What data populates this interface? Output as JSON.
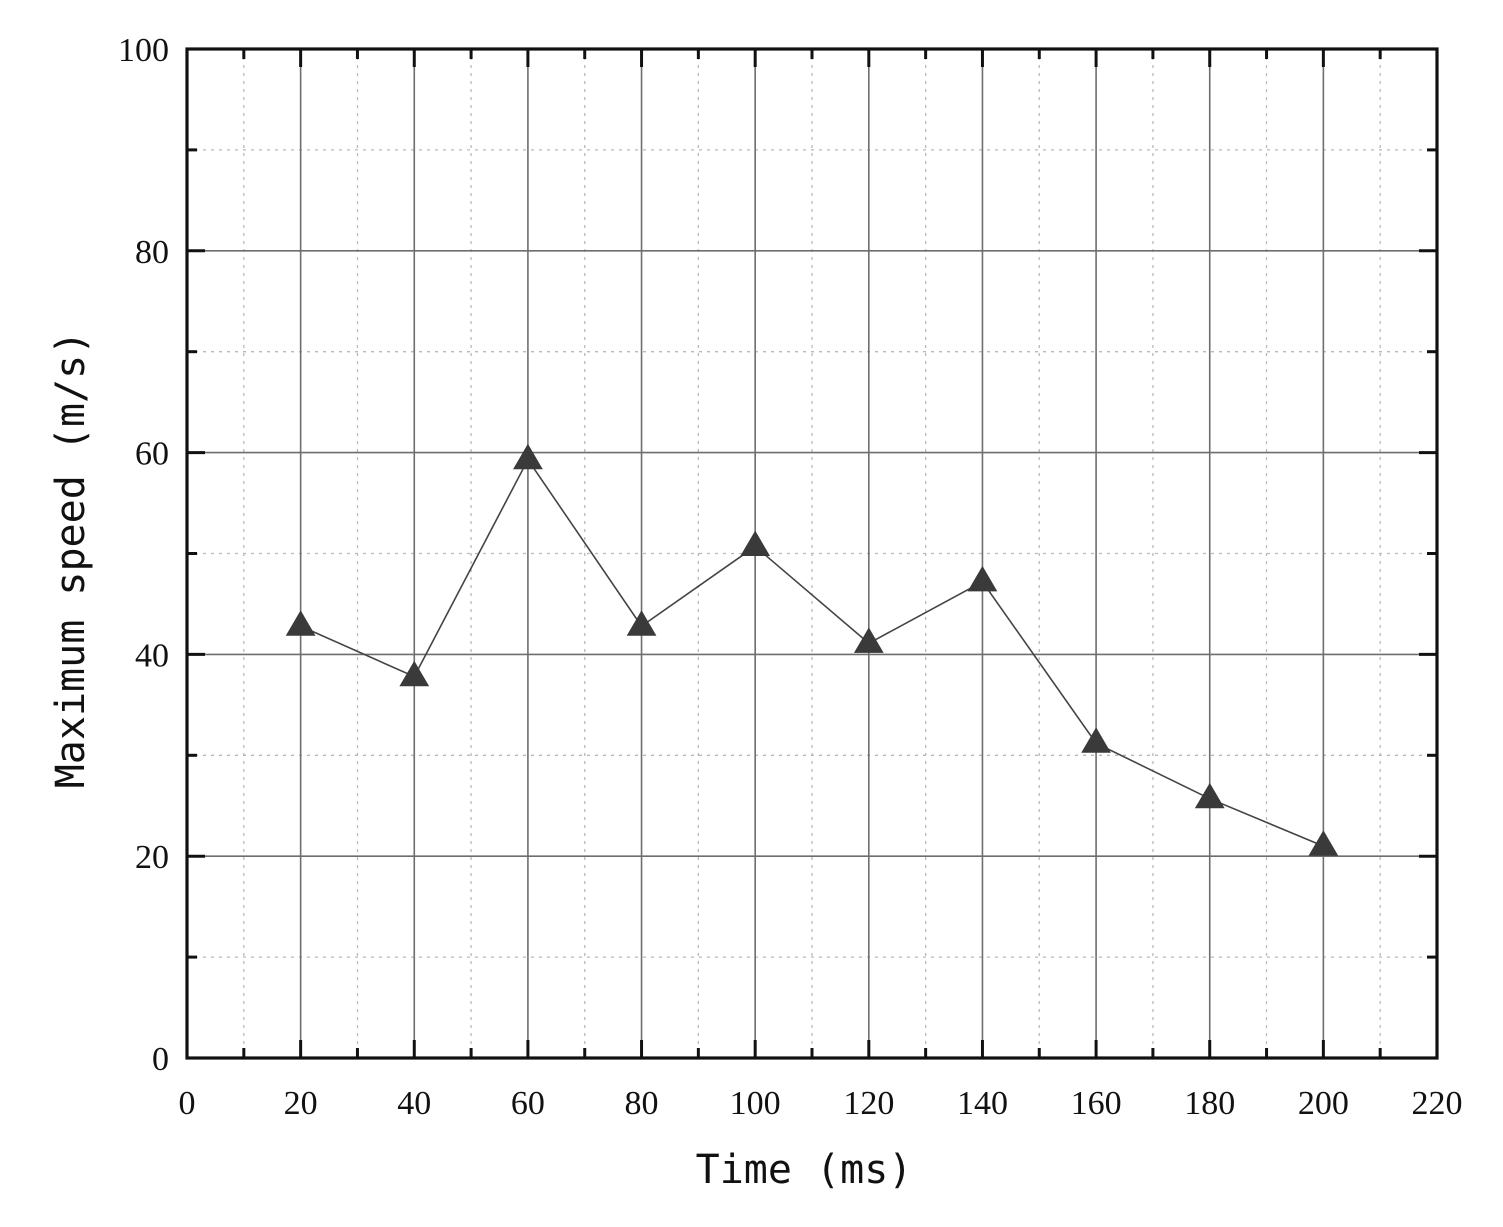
{
  "chart_data": {
    "type": "line",
    "title": "",
    "xlabel": "Time (ms)",
    "ylabel": "Maximum speed (m/s)",
    "xlim": [
      0,
      220
    ],
    "ylim": [
      0,
      100
    ],
    "x_ticks": [
      0,
      20,
      40,
      60,
      80,
      100,
      120,
      140,
      160,
      180,
      200,
      220
    ],
    "y_ticks": [
      0,
      20,
      40,
      60,
      80,
      100
    ],
    "x_minor_step": 10,
    "y_minor_step": 10,
    "grid": true,
    "marker": "triangle",
    "colors": {
      "line": "#444444",
      "marker": "#3a3a3a",
      "frame": "#111111"
    },
    "series": [
      {
        "x": [
          20,
          40,
          60,
          80,
          100,
          120,
          140,
          160,
          180,
          200
        ],
        "values": [
          42.8,
          37.8,
          59.3,
          42.8,
          50.7,
          41.1,
          47.2,
          31.2,
          25.7,
          21.0
        ]
      }
    ]
  }
}
